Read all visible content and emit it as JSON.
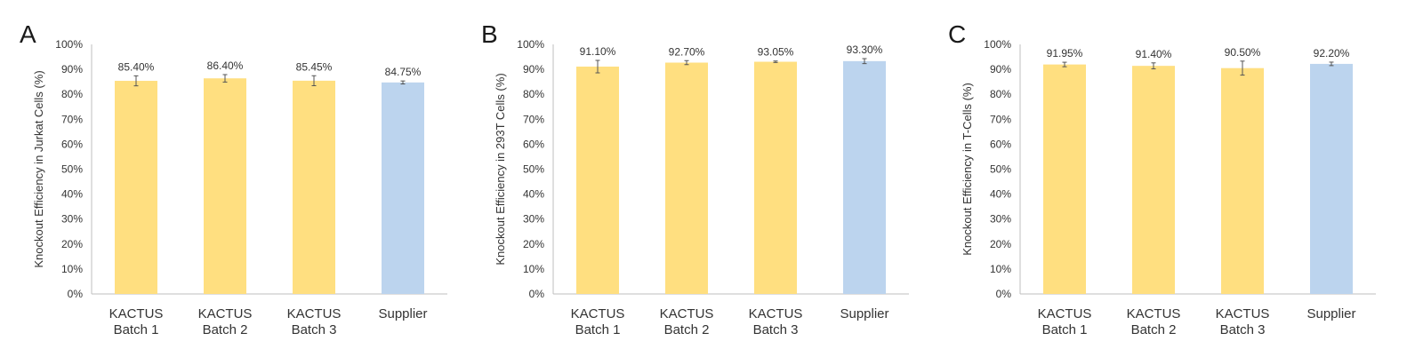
{
  "colors": {
    "kactus": "#FFDF80",
    "supplier": "#BCD4EE",
    "axis": "#bfbfbf",
    "error": "#555555"
  },
  "chart_data": [
    {
      "type": "bar",
      "panel_label": "A",
      "ylabel": "Knockout Efficiency in Jurkat Cells (%)",
      "categories": [
        [
          "KACTUS",
          "Batch 1"
        ],
        [
          "KACTUS",
          "Batch 2"
        ],
        [
          "KACTUS",
          "Batch 3"
        ],
        [
          "Supplier"
        ]
      ],
      "values": [
        85.4,
        86.4,
        85.45,
        84.75
      ],
      "errors": [
        2.0,
        1.5,
        2.0,
        0.6
      ],
      "data_labels": [
        "85.40%",
        "86.40%",
        "85.45%",
        "84.75%"
      ],
      "bar_colors": [
        "kactus",
        "kactus",
        "kactus",
        "supplier"
      ],
      "ylim": [
        0,
        100
      ],
      "yticks": [
        "0%",
        "10%",
        "20%",
        "30%",
        "40%",
        "50%",
        "60%",
        "70%",
        "80%",
        "90%",
        "100%"
      ],
      "grid": false
    },
    {
      "type": "bar",
      "panel_label": "B",
      "ylabel": "Knockout Efficiency in 293T Cells (%)",
      "categories": [
        [
          "KACTUS",
          "Batch 1"
        ],
        [
          "KACTUS",
          "Batch 2"
        ],
        [
          "KACTUS",
          "Batch 3"
        ],
        [
          "Supplier"
        ]
      ],
      "values": [
        91.1,
        92.7,
        93.05,
        93.3
      ],
      "errors": [
        2.5,
        0.8,
        0.3,
        1.0
      ],
      "data_labels": [
        "91.10%",
        "92.70%",
        "93.05%",
        "93.30%"
      ],
      "bar_colors": [
        "kactus",
        "kactus",
        "kactus",
        "supplier"
      ],
      "ylim": [
        0,
        100
      ],
      "yticks": [
        "0%",
        "10%",
        "20%",
        "30%",
        "40%",
        "50%",
        "60%",
        "70%",
        "80%",
        "90%",
        "100%"
      ],
      "grid": false
    },
    {
      "type": "bar",
      "panel_label": "C",
      "ylabel": "Knockout Efficiency in T-Cells (%)",
      "categories": [
        [
          "KACTUS",
          "Batch 1"
        ],
        [
          "KACTUS",
          "Batch 2"
        ],
        [
          "KACTUS",
          "Batch 3"
        ],
        [
          "Supplier"
        ]
      ],
      "values": [
        91.95,
        91.4,
        90.5,
        92.2
      ],
      "errors": [
        0.9,
        1.2,
        2.8,
        0.7
      ],
      "data_labels": [
        "91.95%",
        "91.40%",
        "90.50%",
        "92.20%"
      ],
      "bar_colors": [
        "kactus",
        "kactus",
        "kactus",
        "supplier"
      ],
      "ylim": [
        0,
        100
      ],
      "yticks": [
        "0%",
        "10%",
        "20%",
        "30%",
        "40%",
        "50%",
        "60%",
        "70%",
        "80%",
        "90%",
        "100%"
      ],
      "grid": false
    }
  ]
}
